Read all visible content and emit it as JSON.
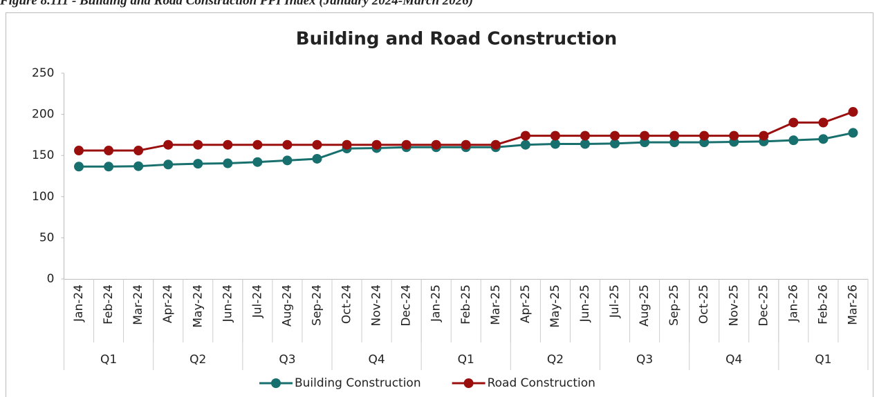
{
  "caption": "Figure 8.111 - Building and Road Construction PPI Index (January 2024-March 2026)",
  "chart_data": {
    "type": "line",
    "title": "Building and Road Construction",
    "categories": [
      "Jan-24",
      "Feb-24",
      "Mar-24",
      "Apr-24",
      "May-24",
      "Jun-24",
      "Jul-24",
      "Aug-24",
      "Sep-24",
      "Oct-24",
      "Nov-24",
      "Dec-24",
      "Jan-25",
      "Feb-25",
      "Mar-25",
      "Apr-25",
      "May-25",
      "Jun-25",
      "Jul-25",
      "Aug-25",
      "Sep-25",
      "Oct-25",
      "Nov-25",
      "Dec-25",
      "Jan-26",
      "Feb-26",
      "Mar-26"
    ],
    "groups": [
      "Q1",
      "Q2",
      "Q3",
      "Q4",
      "Q1",
      "Q2",
      "Q3",
      "Q4",
      "Q1"
    ],
    "series": [
      {
        "name": "Building Construction",
        "color": "#17706e",
        "values": [
          136.5,
          136.5,
          137,
          139,
          140,
          140.5,
          142,
          144,
          146,
          158.5,
          159,
          160,
          160,
          160,
          160,
          163,
          164,
          164,
          164.5,
          166,
          166,
          166,
          166.5,
          167,
          168.5,
          170,
          177.5
        ]
      },
      {
        "name": "Road Construction",
        "color": "#9b0e0e",
        "values": [
          156,
          156,
          156,
          163,
          163,
          163,
          163,
          163,
          163,
          163,
          163,
          163,
          163,
          163,
          163,
          174,
          174,
          174,
          174,
          174,
          174,
          174,
          174,
          174,
          190,
          190,
          203
        ]
      }
    ],
    "ylim": [
      0,
      250
    ],
    "yticks": [
      0,
      50,
      100,
      150,
      200,
      250
    ],
    "grid": false,
    "legend": "bottom"
  }
}
